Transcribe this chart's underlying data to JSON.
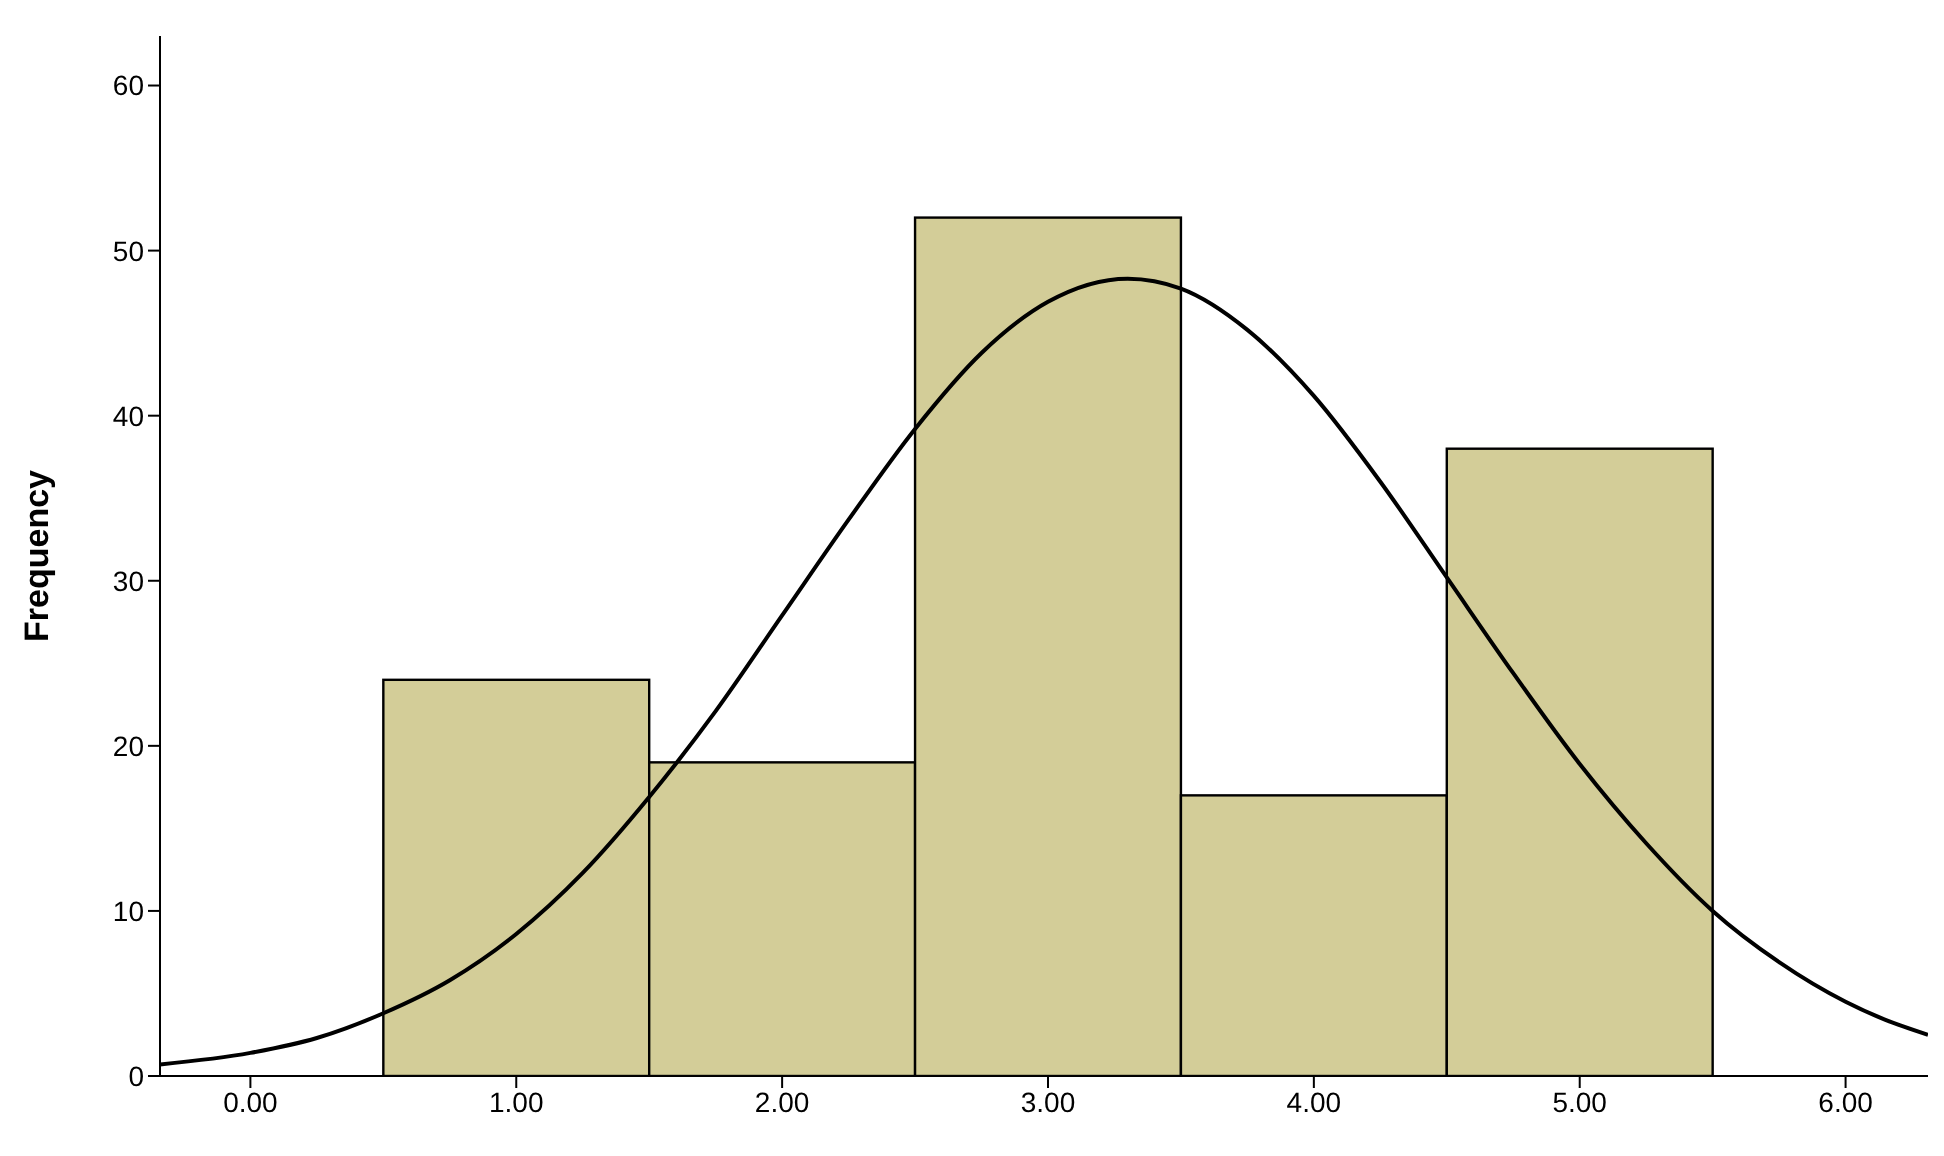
{
  "chart_data": {
    "type": "histogram",
    "ylabel": "Frequency",
    "bins": [
      0.5,
      1.5,
      2.5,
      3.5,
      4.5,
      5.5
    ],
    "values": [
      24,
      19,
      52,
      17,
      38
    ],
    "color": "#d3cd98",
    "series": [
      {
        "type": "line",
        "color": "#000000",
        "x": [
          -0.34,
          0,
          0.25,
          0.5,
          0.75,
          1,
          1.25,
          1.5,
          1.75,
          2,
          2.25,
          2.5,
          2.75,
          3,
          3.3,
          3.5,
          3.75,
          4,
          4.25,
          4.5,
          4.75,
          5,
          5.25,
          5.5,
          5.75,
          6,
          6.15,
          6.31
        ],
        "values": [
          0.7,
          1.4,
          2.3,
          3.8,
          5.8,
          8.6,
          12.3,
          16.9,
          22.1,
          27.9,
          33.7,
          39.2,
          43.8,
          46.9,
          48.3,
          47.7,
          45.2,
          41.2,
          36,
          30.2,
          24.4,
          18.9,
          14.1,
          10,
          6.9,
          4.5,
          3.4,
          2.5
        ]
      }
    ],
    "xlim": [
      -0.34,
      6.31
    ],
    "xticks": [
      {
        "value": 0,
        "label": "0.00"
      },
      {
        "value": 1,
        "label": "1.00"
      },
      {
        "value": 2,
        "label": "2.00"
      },
      {
        "value": 3,
        "label": "3.00"
      },
      {
        "value": 4,
        "label": "4.00"
      },
      {
        "value": 5,
        "label": "5.00"
      },
      {
        "value": 6,
        "label": "6.00"
      }
    ],
    "ylim": [
      0,
      63
    ],
    "yticks": [
      0,
      10,
      20,
      30,
      40,
      50,
      60
    ],
    "grid": false,
    "marker": "none",
    "legend": false
  }
}
